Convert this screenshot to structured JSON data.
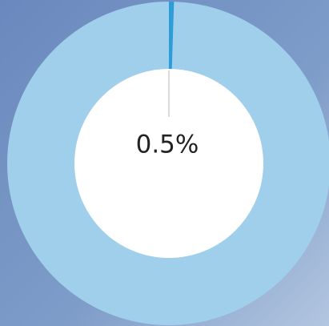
{
  "chart_data": {
    "type": "donut",
    "categories": [
      null,
      null
    ],
    "values": [
      0.5,
      99.5
    ],
    "value_labels": [
      "0.5%",
      null
    ],
    "colors": [
      "#2b9dd8",
      "#9fcfea"
    ]
  }
}
